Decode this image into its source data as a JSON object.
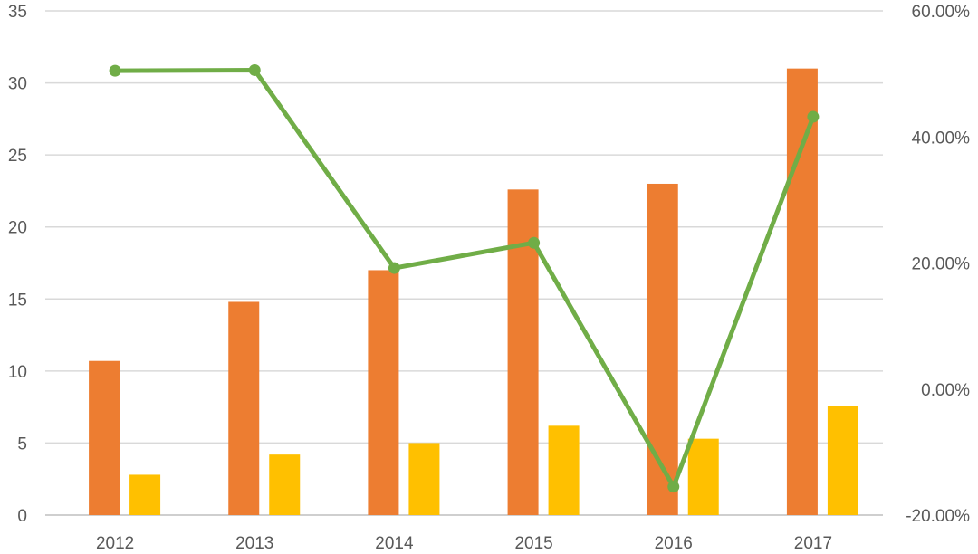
{
  "chart_data": {
    "type": "bar",
    "categories": [
      "2012",
      "2013",
      "2014",
      "2015",
      "2016",
      "2017"
    ],
    "series": [
      {
        "kind": "bar",
        "axis": "left",
        "color": "#ED7D31",
        "values": [
          10.7,
          14.8,
          17.0,
          22.6,
          23.0,
          31.0
        ]
      },
      {
        "kind": "bar",
        "axis": "left",
        "color": "#FFC000",
        "values": [
          2.8,
          4.2,
          5.0,
          6.2,
          5.3,
          7.6
        ]
      },
      {
        "kind": "line",
        "axis": "right",
        "color": "#70AD47",
        "values": [
          0.505,
          0.506,
          0.192,
          0.232,
          -0.155,
          0.432
        ]
      }
    ],
    "y_left": {
      "min": 0,
      "max": 35,
      "ticks": [
        0,
        5,
        10,
        15,
        20,
        25,
        30,
        35
      ],
      "tick_labels": [
        "0",
        "5",
        "10",
        "15",
        "20",
        "25",
        "30",
        "35"
      ]
    },
    "y_right": {
      "min": -0.2,
      "max": 0.6,
      "ticks": [
        -0.2,
        0.0,
        0.2,
        0.4,
        0.6
      ],
      "tick_labels": [
        "-20.00%",
        "0.00%",
        "20.00%",
        "40.00%",
        "60.00%"
      ]
    },
    "grid": true,
    "legend": "none",
    "title": "",
    "xlabel": "",
    "ylabel": ""
  }
}
